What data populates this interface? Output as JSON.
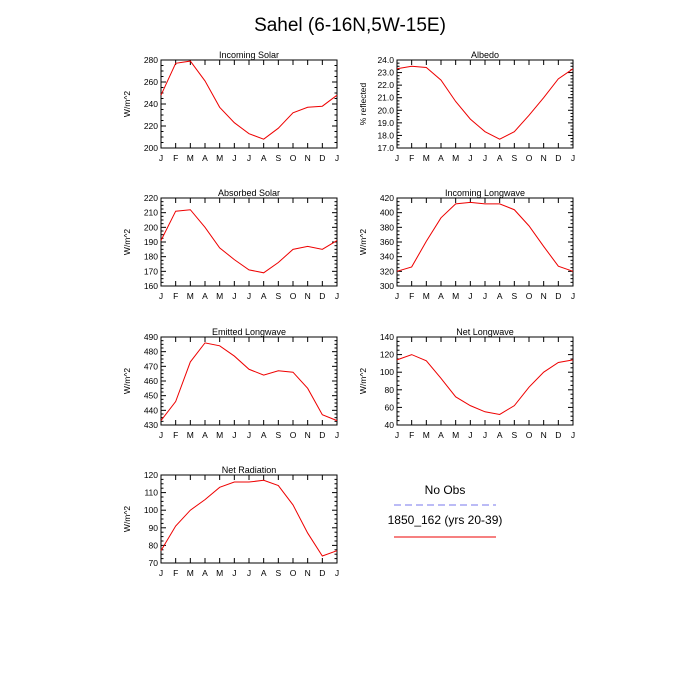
{
  "title": "Sahel (6-16N,5W-15E)",
  "months": [
    "J",
    "F",
    "M",
    "A",
    "M",
    "J",
    "J",
    "A",
    "S",
    "O",
    "N",
    "D",
    "J"
  ],
  "chart_data": [
    {
      "type": "line",
      "title": "Incoming Solar",
      "ylabel": "W/m^2",
      "ylim": [
        200,
        280
      ],
      "yticks": [
        200,
        220,
        240,
        260,
        280
      ],
      "x": [
        0,
        1,
        2,
        3,
        4,
        5,
        6,
        7,
        8,
        9,
        10,
        11,
        12
      ],
      "series": [
        {
          "name": "1850_162 (yrs 20-39)",
          "values": [
            248,
            277,
            279,
            261,
            237,
            223,
            213,
            208,
            218,
            232,
            237,
            238,
            248
          ]
        }
      ]
    },
    {
      "type": "line",
      "title": "Albedo",
      "ylabel": "% reflected",
      "ylim": [
        17.0,
        24.0
      ],
      "yticks": [
        "17.0",
        "18.0",
        "19.0",
        "20.0",
        "21.0",
        "22.0",
        "23.0",
        "24.0"
      ],
      "x": [
        0,
        1,
        2,
        3,
        4,
        5,
        6,
        7,
        8,
        9,
        10,
        11,
        12
      ],
      "series": [
        {
          "name": "1850_162 (yrs 20-39)",
          "values": [
            23.3,
            23.5,
            23.4,
            22.4,
            20.7,
            19.3,
            18.3,
            17.7,
            18.3,
            19.6,
            21.0,
            22.5,
            23.3
          ]
        }
      ]
    },
    {
      "type": "line",
      "title": "Absorbed Solar",
      "ylabel": "W/m^2",
      "ylim": [
        160,
        220
      ],
      "yticks": [
        160,
        170,
        180,
        190,
        200,
        210,
        220
      ],
      "x": [
        0,
        1,
        2,
        3,
        4,
        5,
        6,
        7,
        8,
        9,
        10,
        11,
        12
      ],
      "series": [
        {
          "name": "1850_162 (yrs 20-39)",
          "values": [
            191,
            211,
            212,
            200,
            186,
            178,
            171,
            169,
            176,
            185,
            187,
            185,
            191
          ]
        }
      ]
    },
    {
      "type": "line",
      "title": "Incoming Longwave",
      "ylabel": "W/m^2",
      "ylim": [
        300,
        420
      ],
      "yticks": [
        300,
        320,
        340,
        360,
        380,
        400,
        420
      ],
      "x": [
        0,
        1,
        2,
        3,
        4,
        5,
        6,
        7,
        8,
        9,
        10,
        11,
        12
      ],
      "series": [
        {
          "name": "1850_162 (yrs 20-39)",
          "values": [
            320,
            326,
            361,
            393,
            412,
            414,
            412,
            412,
            404,
            382,
            354,
            327,
            320
          ]
        }
      ]
    },
    {
      "type": "line",
      "title": "Emitted Longwave",
      "ylabel": "W/m^2",
      "ylim": [
        430,
        490
      ],
      "yticks": [
        430,
        440,
        450,
        460,
        470,
        480,
        490
      ],
      "x": [
        0,
        1,
        2,
        3,
        4,
        5,
        6,
        7,
        8,
        9,
        10,
        11,
        12
      ],
      "series": [
        {
          "name": "1850_162 (yrs 20-39)",
          "values": [
            433,
            446,
            473,
            486,
            484,
            477,
            468,
            464,
            467,
            466,
            455,
            437,
            433
          ]
        }
      ]
    },
    {
      "type": "line",
      "title": "Net Longwave",
      "ylabel": "W/m^2",
      "ylim": [
        40,
        140
      ],
      "yticks": [
        40,
        60,
        80,
        100,
        120,
        140
      ],
      "x": [
        0,
        1,
        2,
        3,
        4,
        5,
        6,
        7,
        8,
        9,
        10,
        11,
        12
      ],
      "series": [
        {
          "name": "1850_162 (yrs 20-39)",
          "values": [
            114,
            120,
            113,
            93,
            72,
            62,
            55,
            52,
            62,
            83,
            100,
            111,
            114
          ]
        }
      ]
    },
    {
      "type": "line",
      "title": "Net Radiation",
      "ylabel": "W/m^2",
      "ylim": [
        70,
        120
      ],
      "yticks": [
        70,
        80,
        90,
        100,
        110,
        120
      ],
      "x": [
        0,
        1,
        2,
        3,
        4,
        5,
        6,
        7,
        8,
        9,
        10,
        11,
        12
      ],
      "series": [
        {
          "name": "1850_162 (yrs 20-39)",
          "values": [
            77,
            91,
            100,
            106,
            113,
            116,
            116,
            117,
            114,
            103,
            87,
            74,
            77
          ]
        }
      ]
    }
  ],
  "legend": {
    "items": [
      {
        "label": "No Obs",
        "color": "#7777ee",
        "dash": true
      },
      {
        "label": "1850_162 (yrs 20-39)",
        "color": "#ee0000",
        "dash": false
      }
    ]
  },
  "colors": {
    "model_line": "#ee0000",
    "obs_line": "#7777ee"
  }
}
